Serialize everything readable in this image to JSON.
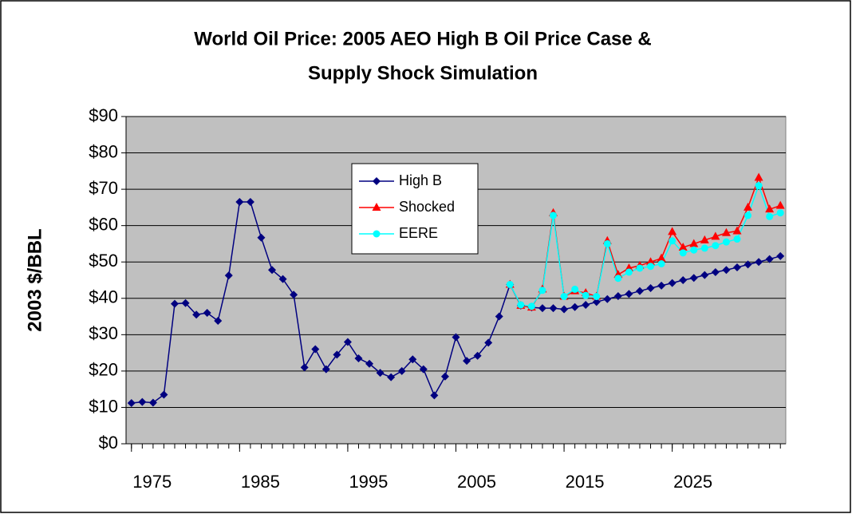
{
  "chart_data": {
    "type": "line",
    "title": [
      "World Oil Price: 2005 AEO High B Oil Price Case &",
      "Supply Shock Simulation"
    ],
    "y_label": "2003 $/BBL",
    "x": [
      1975,
      1976,
      1977,
      1978,
      1979,
      1980,
      1981,
      1982,
      1983,
      1984,
      1985,
      1986,
      1987,
      1988,
      1989,
      1990,
      1991,
      1992,
      1993,
      1994,
      1995,
      1996,
      1997,
      1998,
      1999,
      2000,
      2001,
      2002,
      2003,
      2004,
      2005,
      2006,
      2007,
      2008,
      2009,
      2010,
      2011,
      2012,
      2013,
      2014,
      2015,
      2016,
      2017,
      2018,
      2019,
      2020,
      2021,
      2022,
      2023,
      2024,
      2025,
      2026,
      2027,
      2028,
      2029,
      2030,
      2031,
      2032,
      2033,
      2034,
      2035
    ],
    "xlim": [
      1974.5,
      2035.5
    ],
    "xticks": [
      1975,
      1985,
      1995,
      2005,
      2015,
      2025
    ],
    "ylim": [
      0,
      90
    ],
    "yticks": [
      {
        "value": 0,
        "label": "$0"
      },
      {
        "value": 10,
        "label": "$10"
      },
      {
        "value": 20,
        "label": "$20"
      },
      {
        "value": 30,
        "label": "$30"
      },
      {
        "value": 40,
        "label": "$40"
      },
      {
        "value": 50,
        "label": "$50"
      },
      {
        "value": 60,
        "label": "$60"
      },
      {
        "value": 70,
        "label": "$70"
      },
      {
        "value": 80,
        "label": "$80"
      },
      {
        "value": 90,
        "label": "$90"
      }
    ],
    "grid": true,
    "series": [
      {
        "name": "High B",
        "color": "#000080",
        "marker": "diamond",
        "values": [
          11.2,
          11.5,
          11.3,
          13.5,
          38.5,
          38.7,
          35.5,
          36,
          33.8,
          46.3,
          66.5,
          66.5,
          56.7,
          47.8,
          45.3,
          41,
          21,
          26,
          20.5,
          24.5,
          28,
          23.5,
          22,
          19.5,
          18.3,
          20,
          23.2,
          20.5,
          13.3,
          18.5,
          29.3,
          22.8,
          24.2,
          27.8,
          35,
          43.8,
          38,
          37.5,
          37.3,
          37.3,
          37,
          37.6,
          38.2,
          39,
          39.8,
          40.6,
          41.2,
          42,
          42.8,
          43.5,
          44.2,
          45,
          45.6,
          46.4,
          47.2,
          47.8,
          48.5,
          49.3,
          50,
          50.8,
          51.6
        ]
      },
      {
        "name": "Shocked",
        "color": "#ff0000",
        "marker": "triangle",
        "values": [
          null,
          null,
          null,
          null,
          null,
          null,
          null,
          null,
          null,
          null,
          null,
          null,
          null,
          null,
          null,
          null,
          null,
          null,
          null,
          null,
          null,
          null,
          null,
          null,
          null,
          null,
          null,
          null,
          null,
          null,
          null,
          null,
          null,
          null,
          null,
          43.8,
          38,
          37.5,
          42.5,
          63.5,
          40.5,
          42,
          41.5,
          40.5,
          55.8,
          46.5,
          48.3,
          49,
          50,
          51,
          58.3,
          54,
          55,
          56,
          57,
          58,
          58.5,
          65,
          73.2,
          64.5,
          65.5
        ]
      },
      {
        "name": "EERE",
        "color": "#00ffff",
        "marker": "circle",
        "values": [
          null,
          null,
          null,
          null,
          null,
          null,
          null,
          null,
          null,
          null,
          null,
          null,
          null,
          null,
          null,
          null,
          null,
          null,
          null,
          null,
          null,
          null,
          null,
          null,
          null,
          null,
          null,
          null,
          null,
          null,
          null,
          null,
          null,
          null,
          null,
          43.8,
          38.2,
          37.8,
          42.2,
          62.8,
          40.5,
          42.5,
          40.8,
          40.5,
          55,
          45.5,
          47.2,
          48.3,
          48.8,
          49.5,
          55.8,
          52.5,
          53.3,
          53.8,
          54.5,
          55.5,
          56.3,
          62.8,
          71,
          62.5,
          63.5
        ]
      }
    ]
  }
}
